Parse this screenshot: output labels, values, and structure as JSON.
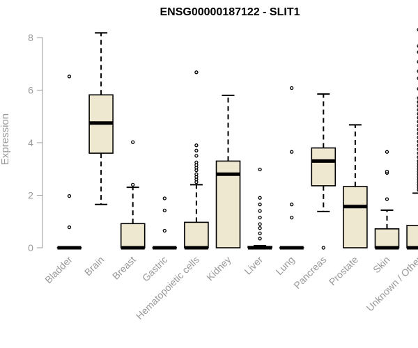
{
  "chart_data": {
    "type": "boxplot",
    "title": "ENSG00000187122 - SLIT1",
    "xlabel": "",
    "ylabel": "Expression",
    "ylim": [
      0,
      8.4
    ],
    "yticks": [
      0,
      2,
      4,
      6,
      8
    ],
    "grid": false,
    "colors": {
      "box_fill": "#efe8d0",
      "stroke": "#000000",
      "axis_text": "#999999"
    },
    "categories": [
      "Bladder",
      "Brain",
      "Breast",
      "Gastric",
      "Hematopoietic cells",
      "Kidney",
      "Liver",
      "Lung",
      "Pancreas",
      "Prostate",
      "Skin",
      "Unknown / Other"
    ],
    "boxes": [
      {
        "category": "Bladder",
        "min": 0,
        "q1": 0,
        "median": 0,
        "q3": 0,
        "max": 0,
        "outliers": [
          0.78,
          1.97,
          6.52
        ]
      },
      {
        "category": "Brain",
        "min": 1.65,
        "q1": 3.6,
        "median": 4.75,
        "q3": 5.82,
        "max": 8.18,
        "outliers": []
      },
      {
        "category": "Breast",
        "min": 0,
        "q1": 0,
        "median": 0,
        "q3": 0.92,
        "max": 2.3,
        "outliers": [
          2.4,
          4.02
        ]
      },
      {
        "category": "Gastric",
        "min": 0,
        "q1": 0,
        "median": 0,
        "q3": 0,
        "max": 0,
        "outliers": [
          0.65,
          1.42,
          1.88
        ]
      },
      {
        "category": "Hematopoietic cells",
        "min": 0,
        "q1": 0,
        "median": 0,
        "q3": 0.97,
        "max": 2.4,
        "outliers": [
          2.5,
          2.6,
          2.7,
          2.8,
          2.95,
          3.05,
          3.15,
          3.25,
          3.5,
          3.7,
          3.9,
          6.68
        ]
      },
      {
        "category": "Kidney",
        "min": 0,
        "q1": 0,
        "median": 2.8,
        "q3": 3.3,
        "max": 5.8,
        "outliers": []
      },
      {
        "category": "Liver",
        "min": 0,
        "q1": 0,
        "median": 0,
        "q3": 0.05,
        "max": 0.08,
        "outliers": [
          0.35,
          0.55,
          0.75,
          0.9,
          1.15,
          1.4,
          1.65,
          1.9,
          2.98
        ]
      },
      {
        "category": "Lung",
        "min": 0,
        "q1": 0,
        "median": 0,
        "q3": 0,
        "max": 0,
        "outliers": [
          1.15,
          1.65,
          3.65,
          6.08
        ]
      },
      {
        "category": "Pancreas",
        "min": 1.38,
        "q1": 2.36,
        "median": 3.3,
        "q3": 3.8,
        "max": 5.85,
        "outliers": [
          0
        ]
      },
      {
        "category": "Prostate",
        "min": 0,
        "q1": 0,
        "median": 1.57,
        "q3": 2.33,
        "max": 4.68,
        "outliers": []
      },
      {
        "category": "Skin",
        "min": 0,
        "q1": 0,
        "median": 0,
        "q3": 0.72,
        "max": 1.43,
        "outliers": [
          1.85,
          2.85,
          2.9,
          3.65
        ]
      },
      {
        "category": "Unknown / Other",
        "min": 0,
        "q1": 0,
        "median": 0,
        "q3": 0.85,
        "max": 2.08,
        "outliers": [
          2.2,
          2.3,
          2.4,
          2.5,
          2.6,
          2.7,
          2.8,
          2.9,
          3.0,
          3.1,
          3.2,
          3.3,
          3.45,
          3.6,
          3.75,
          3.9,
          4.05,
          4.2,
          4.35,
          4.5,
          4.65,
          4.8,
          4.95,
          5.1,
          5.25,
          5.4,
          5.55,
          5.7,
          6.05,
          6.45,
          6.72,
          7.08,
          7.45,
          7.68,
          8.3
        ]
      }
    ]
  }
}
